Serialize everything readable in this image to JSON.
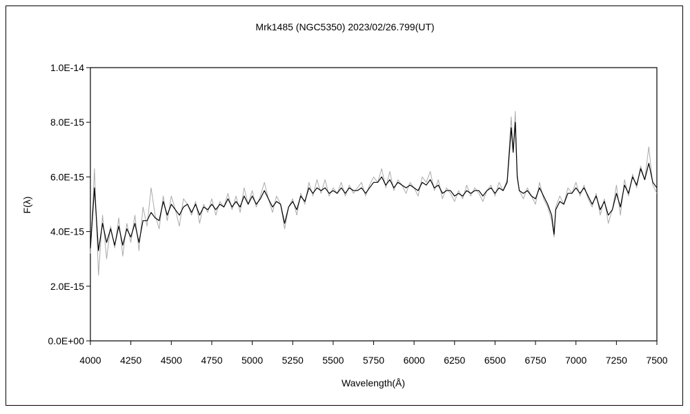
{
  "chart_data": {
    "type": "line",
    "title": "Mrk1485 (NGC5350)    2023/02/26.799(UT)",
    "xlabel": "Wavelength(Å)",
    "ylabel": "F(λ)",
    "xlim": [
      4000,
      7500
    ],
    "ylim": [
      0,
      1e-14
    ],
    "x_ticks": [
      4000,
      4250,
      4500,
      4750,
      5000,
      5250,
      5500,
      5750,
      6000,
      6250,
      6500,
      6750,
      7000,
      7250,
      7500
    ],
    "x_tick_labels": [
      "4000",
      "4250",
      "4500",
      "4750",
      "5000",
      "5250",
      "5500",
      "5750",
      "6000",
      "6250",
      "6500",
      "6750",
      "7000",
      "7250",
      "7500"
    ],
    "y_ticks": [
      0,
      2e-15,
      4e-15,
      6e-15,
      8e-15,
      1e-14
    ],
    "y_tick_labels": [
      "0.0E+00",
      "2.0E-15",
      "4.0E-15",
      "6.0E-15",
      "8.0E-15",
      "1.0E-14"
    ],
    "grid": false,
    "legend": "none",
    "series": [
      {
        "color": "#aaaaaa",
        "style": "raw",
        "x": [
          4000,
          4025,
          4050,
          4075,
          4100,
          4125,
          4150,
          4175,
          4200,
          4225,
          4250,
          4275,
          4300,
          4325,
          4350,
          4375,
          4400,
          4425,
          4450,
          4475,
          4500,
          4525,
          4550,
          4575,
          4600,
          4625,
          4650,
          4675,
          4700,
          4725,
          4750,
          4775,
          4800,
          4825,
          4850,
          4875,
          4900,
          4925,
          4950,
          4975,
          5000,
          5025,
          5050,
          5075,
          5100,
          5125,
          5150,
          5175,
          5200,
          5225,
          5250,
          5275,
          5300,
          5325,
          5350,
          5375,
          5400,
          5425,
          5450,
          5475,
          5500,
          5525,
          5550,
          5575,
          5600,
          5625,
          5650,
          5675,
          5700,
          5725,
          5750,
          5775,
          5800,
          5825,
          5850,
          5875,
          5900,
          5925,
          5950,
          5975,
          6000,
          6025,
          6050,
          6075,
          6100,
          6125,
          6150,
          6175,
          6200,
          6225,
          6250,
          6275,
          6300,
          6325,
          6350,
          6375,
          6400,
          6425,
          6450,
          6475,
          6500,
          6525,
          6550,
          6575,
          6600,
          6612,
          6625,
          6637,
          6650,
          6675,
          6700,
          6725,
          6750,
          6775,
          6800,
          6825,
          6850,
          6865,
          6875,
          6900,
          6925,
          6950,
          6975,
          7000,
          7025,
          7050,
          7075,
          7100,
          7125,
          7150,
          7175,
          7200,
          7225,
          7250,
          7275,
          7300,
          7325,
          7350,
          7375,
          7400,
          7425,
          7450,
          7475,
          7500
        ],
        "y": [
          3.2e-15,
          6.3e-15,
          2.4e-15,
          4.6e-15,
          3e-15,
          4.2e-15,
          3.4e-15,
          4.5e-15,
          3.1e-15,
          4.3e-15,
          3.6e-15,
          4.6e-15,
          3.3e-15,
          4.9e-15,
          4.2e-15,
          5.6e-15,
          4.6e-15,
          4.1e-15,
          5.3e-15,
          4.4e-15,
          5.3e-15,
          4.8e-15,
          4.2e-15,
          5.2e-15,
          5e-15,
          4.6e-15,
          5.1e-15,
          4.3e-15,
          5e-15,
          4.7e-15,
          5.2e-15,
          4.6e-15,
          5.1e-15,
          4.9e-15,
          5.4e-15,
          4.8e-15,
          5.3e-15,
          4.7e-15,
          5.6e-15,
          5e-15,
          5.5e-15,
          4.9e-15,
          5.3e-15,
          5.8e-15,
          5.2e-15,
          4.7e-15,
          5.3e-15,
          5e-15,
          4.1e-15,
          4.9e-15,
          5.2e-15,
          4.6e-15,
          5.4e-15,
          5e-15,
          5.8e-15,
          5.3e-15,
          5.9e-15,
          5.4e-15,
          5.9e-15,
          5.3e-15,
          5.6e-15,
          5.4e-15,
          5.8e-15,
          5.3e-15,
          5.7e-15,
          5.4e-15,
          5.6e-15,
          5.8e-15,
          5.3e-15,
          5.7e-15,
          6e-15,
          5.8e-15,
          6.3e-15,
          5.6e-15,
          6.2e-15,
          5.5e-15,
          5.9e-15,
          5.7e-15,
          5.4e-15,
          5.8e-15,
          5.6e-15,
          5.3e-15,
          6e-15,
          5.8e-15,
          6.2e-15,
          5.5e-15,
          5.9e-15,
          5.2e-15,
          5.6e-15,
          5.4e-15,
          5.1e-15,
          5.5e-15,
          5.2e-15,
          5.7e-15,
          5.3e-15,
          5.6e-15,
          5.4e-15,
          5.1e-15,
          5.5e-15,
          5.7e-15,
          5.3e-15,
          5.8e-15,
          5.5e-15,
          5.9e-15,
          8.2e-15,
          7e-15,
          8.4e-15,
          6.1e-15,
          5.5e-15,
          5.2e-15,
          5.6e-15,
          5.3e-15,
          5e-15,
          5.8e-15,
          5.2e-15,
          4.9e-15,
          4.4e-15,
          3.8e-15,
          4.9e-15,
          5.3e-15,
          5e-15,
          5.6e-15,
          5.4e-15,
          5.8e-15,
          5.3e-15,
          5.7e-15,
          5.2e-15,
          4.9e-15,
          5.4e-15,
          4.6e-15,
          5.2e-15,
          4.3e-15,
          4.8e-15,
          5.7e-15,
          4.6e-15,
          5.9e-15,
          5.3e-15,
          6.1e-15,
          5.6e-15,
          6.4e-15,
          5.9e-15,
          7.1e-15,
          5.7e-15,
          5.4e-15
        ]
      },
      {
        "color": "#000000",
        "style": "smoothed",
        "x": [
          4000,
          4025,
          4050,
          4075,
          4100,
          4125,
          4150,
          4175,
          4200,
          4225,
          4250,
          4275,
          4300,
          4325,
          4350,
          4375,
          4400,
          4425,
          4450,
          4475,
          4500,
          4525,
          4550,
          4575,
          4600,
          4625,
          4650,
          4675,
          4700,
          4725,
          4750,
          4775,
          4800,
          4825,
          4850,
          4875,
          4900,
          4925,
          4950,
          4975,
          5000,
          5025,
          5050,
          5075,
          5100,
          5125,
          5150,
          5175,
          5200,
          5225,
          5250,
          5275,
          5300,
          5325,
          5350,
          5375,
          5400,
          5425,
          5450,
          5475,
          5500,
          5525,
          5550,
          5575,
          5600,
          5625,
          5650,
          5675,
          5700,
          5725,
          5750,
          5775,
          5800,
          5825,
          5850,
          5875,
          5900,
          5925,
          5950,
          5975,
          6000,
          6025,
          6050,
          6075,
          6100,
          6125,
          6150,
          6175,
          6200,
          6225,
          6250,
          6275,
          6300,
          6325,
          6350,
          6375,
          6400,
          6425,
          6450,
          6475,
          6500,
          6525,
          6550,
          6575,
          6600,
          6612,
          6625,
          6637,
          6650,
          6675,
          6700,
          6725,
          6750,
          6775,
          6800,
          6825,
          6850,
          6865,
          6875,
          6900,
          6925,
          6950,
          6975,
          7000,
          7025,
          7050,
          7075,
          7100,
          7125,
          7150,
          7175,
          7200,
          7225,
          7250,
          7275,
          7300,
          7325,
          7350,
          7375,
          7400,
          7425,
          7450,
          7475,
          7500
        ],
        "y": [
          3.4e-15,
          5.6e-15,
          3.3e-15,
          4.3e-15,
          3.6e-15,
          4.1e-15,
          3.5e-15,
          4.2e-15,
          3.5e-15,
          4.1e-15,
          3.8e-15,
          4.3e-15,
          3.6e-15,
          4.4e-15,
          4.4e-15,
          4.7e-15,
          4.5e-15,
          4.4e-15,
          5.1e-15,
          4.6e-15,
          5e-15,
          4.8e-15,
          4.6e-15,
          4.9e-15,
          5e-15,
          4.7e-15,
          5e-15,
          4.6e-15,
          4.9e-15,
          4.8e-15,
          5e-15,
          4.8e-15,
          5e-15,
          4.9e-15,
          5.2e-15,
          4.9e-15,
          5.1e-15,
          4.9e-15,
          5.3e-15,
          5e-15,
          5.3e-15,
          5e-15,
          5.2e-15,
          5.5e-15,
          5.2e-15,
          4.9e-15,
          5.1e-15,
          5e-15,
          4.3e-15,
          4.9e-15,
          5.1e-15,
          4.8e-15,
          5.3e-15,
          5.1e-15,
          5.6e-15,
          5.4e-15,
          5.6e-15,
          5.5e-15,
          5.6e-15,
          5.4e-15,
          5.5e-15,
          5.4e-15,
          5.6e-15,
          5.4e-15,
          5.6e-15,
          5.5e-15,
          5.5e-15,
          5.6e-15,
          5.4e-15,
          5.6e-15,
          5.8e-15,
          5.8e-15,
          6e-15,
          5.7e-15,
          5.9e-15,
          5.6e-15,
          5.8e-15,
          5.7e-15,
          5.6e-15,
          5.7e-15,
          5.6e-15,
          5.5e-15,
          5.8e-15,
          5.7e-15,
          5.9e-15,
          5.6e-15,
          5.7e-15,
          5.4e-15,
          5.5e-15,
          5.5e-15,
          5.3e-15,
          5.4e-15,
          5.3e-15,
          5.5e-15,
          5.4e-15,
          5.5e-15,
          5.5e-15,
          5.3e-15,
          5.5e-15,
          5.6e-15,
          5.4e-15,
          5.6e-15,
          5.5e-15,
          5.8e-15,
          7.8e-15,
          6.9e-15,
          8e-15,
          6e-15,
          5.5e-15,
          5.4e-15,
          5.5e-15,
          5.3e-15,
          5.2e-15,
          5.6e-15,
          5.3e-15,
          5e-15,
          4.6e-15,
          3.9e-15,
          4.8e-15,
          5.1e-15,
          5e-15,
          5.4e-15,
          5.4e-15,
          5.6e-15,
          5.4e-15,
          5.6e-15,
          5.3e-15,
          5e-15,
          5.3e-15,
          4.8e-15,
          5.1e-15,
          4.6e-15,
          4.8e-15,
          5.4e-15,
          4.9e-15,
          5.7e-15,
          5.4e-15,
          6e-15,
          5.7e-15,
          6.3e-15,
          5.9e-15,
          6.5e-15,
          5.8e-15,
          5.6e-15
        ]
      }
    ]
  }
}
